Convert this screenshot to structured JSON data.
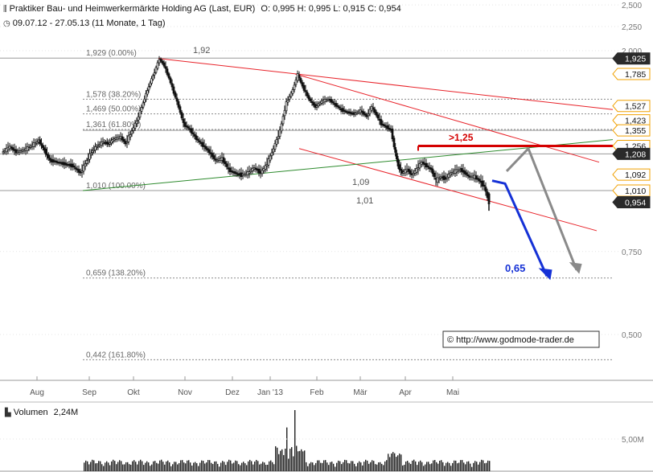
{
  "header": {
    "title": "Praktiker Bau- und Heimwerkermärkte Holding AG (Last, EUR)",
    "ohlc": "O: 0,995  H: 0,995  L: 0,915  C: 0,954",
    "period": "09.07.12 - 27.05.13 (11 Monate, 1 Tag)",
    "title_icon": "candlestick-icon",
    "period_icon": "clock-icon"
  },
  "volume_header": {
    "label": "Volumen",
    "value": "2,24M",
    "icon": "bar-icon"
  },
  "watermark": "© http://www.godmode-trader.de",
  "colors": {
    "red_line": "#e8232a",
    "green_line": "#2e8b2e",
    "blue_arrow": "#1531d6",
    "grey_arrow": "#8a8a8a",
    "dark_badge": "#2a2a2a",
    "orange_badge_border": "#f0a000"
  },
  "chart_data": {
    "type": "candlestick",
    "y_axis": {
      "ticks": [
        {
          "value": 2.5,
          "label": "2,500"
        },
        {
          "value": 2.25,
          "label": "2,250"
        },
        {
          "value": 2.0,
          "label": "2,000"
        },
        {
          "value": 0.75,
          "label": "0,750"
        },
        {
          "value": 0.5,
          "label": "0,500"
        }
      ],
      "scale": "log"
    },
    "x_axis": {
      "labels": [
        "Aug",
        "Sep",
        "Okt",
        "Nov",
        "Dez",
        "Jan '13",
        "Feb",
        "Mär",
        "Apr",
        "Mai"
      ]
    },
    "fib_levels": [
      {
        "value": 1.929,
        "label": "1,929 (0.00%)"
      },
      {
        "value": 1.578,
        "label": "1,578 (38.20%)"
      },
      {
        "value": 1.469,
        "label": "1,469 (50.00%)"
      },
      {
        "value": 1.361,
        "label": "1,361 (61.80%)"
      },
      {
        "value": 1.01,
        "label": "1,010 (100.00%)"
      },
      {
        "value": 0.659,
        "label": "0,659 (138.20%)"
      },
      {
        "value": 0.442,
        "label": "0,442 (161.80%)"
      }
    ],
    "price_badges": [
      {
        "value": 1.925,
        "label": "1,925",
        "style": "dark"
      },
      {
        "value": 1.785,
        "label": "1,785",
        "style": "light"
      },
      {
        "value": 1.527,
        "label": "1,527",
        "style": "light"
      },
      {
        "value": 1.423,
        "label": "1,423",
        "style": "light"
      },
      {
        "value": 1.355,
        "label": "1,355",
        "style": "light"
      },
      {
        "value": 1.256,
        "label": "1,256",
        "style": "light"
      },
      {
        "value": 1.208,
        "label": "1,208",
        "style": "dark"
      },
      {
        "value": 1.092,
        "label": "1,092",
        "style": "light"
      },
      {
        "value": 1.01,
        "label": "1,010",
        "style": "light"
      },
      {
        "value": 0.954,
        "label": "0,954",
        "style": "dark"
      }
    ],
    "annotations": [
      {
        "text": "1,92"
      },
      {
        "text": "1,09"
      },
      {
        "text": "1,01"
      },
      {
        "text": ">1,25"
      },
      {
        "text": "0,65"
      }
    ],
    "volume_axis": {
      "tick_value": 5.0,
      "tick_label": "5,00M"
    },
    "last_close": 0.954
  }
}
